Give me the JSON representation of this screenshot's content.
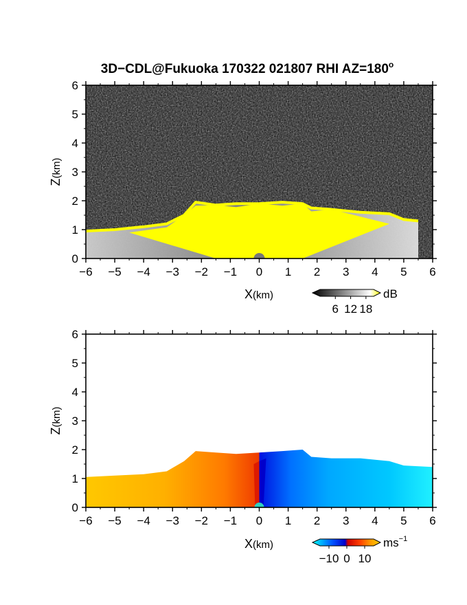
{
  "chart_data": [
    {
      "type": "heatmap",
      "title": "3D−CDL@Fukuoka 170322 021807 RHI AZ=180",
      "title_superscript": "o",
      "xlabel": "X",
      "xlabel_unit": "(km)",
      "ylabel": "Z",
      "ylabel_unit": "(km)",
      "xlim": [
        -6,
        6
      ],
      "ylim": [
        0,
        6
      ],
      "x_ticks": [
        "−6",
        "−5",
        "−4",
        "−3",
        "−2",
        "−1",
        "0",
        "1",
        "2",
        "3",
        "4",
        "5",
        "6"
      ],
      "y_ticks": [
        "0",
        "1",
        "2",
        "3",
        "4",
        "5",
        "6"
      ],
      "colorbar": {
        "unit": "dB",
        "ticks": [
          "6",
          "12",
          "18"
        ],
        "tick_values": [
          6,
          12,
          18
        ],
        "range": [
          0,
          21
        ],
        "colors": [
          "#000000",
          "#ffffff",
          "#ffff00"
        ]
      },
      "echo_top_profile": {
        "x": [
          -6,
          -5,
          -4,
          -3.2,
          -2.6,
          -2.2,
          -1.5,
          -0.8,
          0,
          0.8,
          1.5,
          1.8,
          2.5,
          3.5,
          4.5,
          5,
          5.5
        ],
        "z": [
          0.95,
          1.0,
          1.1,
          1.2,
          1.5,
          1.95,
          1.85,
          1.9,
          1.9,
          1.95,
          1.9,
          1.75,
          1.7,
          1.6,
          1.55,
          1.35,
          1.3
        ]
      }
    },
    {
      "type": "heatmap",
      "xlabel": "X",
      "xlabel_unit": "(km)",
      "ylabel": "Z",
      "ylabel_unit": "(km)",
      "xlim": [
        -6,
        6
      ],
      "ylim": [
        0,
        6
      ],
      "x_ticks": [
        "−6",
        "−5",
        "−4",
        "−3",
        "−2",
        "−1",
        "0",
        "1",
        "2",
        "3",
        "4",
        "5",
        "6"
      ],
      "y_ticks": [
        "0",
        "1",
        "2",
        "3",
        "4",
        "5",
        "6"
      ],
      "colorbar": {
        "unit": "ms",
        "unit_superscript": "−1",
        "ticks": [
          "−10",
          "0",
          "10"
        ],
        "tick_values": [
          -10,
          0,
          10
        ],
        "range": [
          -15,
          15
        ],
        "colors": [
          "#00ffff",
          "#0050ff",
          "#0000cc",
          "#cc0000",
          "#ff4000",
          "#ff9900",
          "#ffd000"
        ]
      },
      "echo_top_profile": {
        "x": [
          -6,
          -5,
          -4,
          -3.2,
          -2.6,
          -2.2,
          -1.5,
          -0.8,
          0,
          0.8,
          1.5,
          1.8,
          2.5,
          3.5,
          4.5,
          5,
          6
        ],
        "z": [
          1.05,
          1.1,
          1.15,
          1.25,
          1.6,
          1.95,
          1.9,
          1.85,
          1.9,
          1.95,
          2.0,
          1.75,
          1.7,
          1.7,
          1.6,
          1.45,
          1.4
        ]
      }
    }
  ]
}
